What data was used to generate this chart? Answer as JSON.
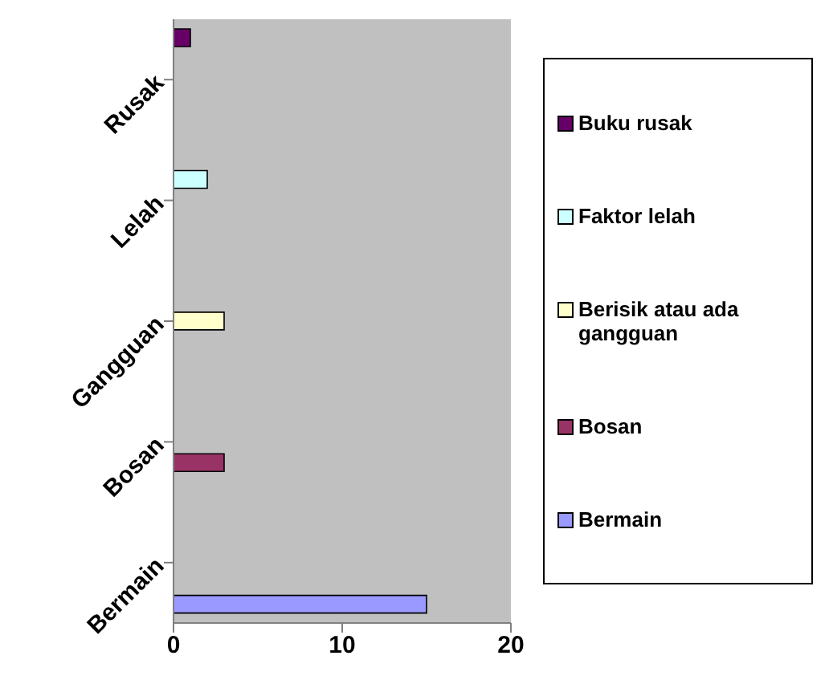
{
  "chart_data": {
    "type": "bar",
    "orientation": "horizontal",
    "categories": [
      "Rusak",
      "Lelah",
      "Gangguan",
      "Bosan",
      "Bermain"
    ],
    "series": [
      {
        "name": "Buku rusak",
        "color": "#660066",
        "values": [
          1,
          null,
          null,
          null,
          null
        ]
      },
      {
        "name": "Faktor lelah",
        "color": "#ccffff",
        "values": [
          null,
          2,
          null,
          null,
          null
        ]
      },
      {
        "name": "Berisik atau ada gangguan",
        "color": "#ffffcc",
        "values": [
          null,
          null,
          3,
          null,
          null
        ]
      },
      {
        "name": "Bosan",
        "color": "#993366",
        "values": [
          null,
          null,
          null,
          3,
          null
        ]
      },
      {
        "name": "Bermain",
        "color": "#9999ff",
        "values": [
          null,
          null,
          null,
          null,
          15
        ]
      }
    ],
    "xlim": [
      0,
      20
    ],
    "xticks": [
      0,
      10,
      20
    ],
    "grid": false,
    "legend": "right"
  }
}
